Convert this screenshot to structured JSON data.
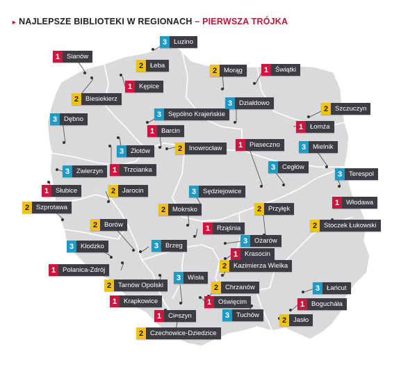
{
  "title": {
    "part1": "NAJLEPSZE BIBLIOTEKI W REGIONACH",
    "separator": " – ",
    "part2": "PIERWSZA TRÓJKA"
  },
  "colors": {
    "rank1": "#c8183f",
    "rank2": "#f2c01b",
    "rank3": "#1d9bc5",
    "label_bg": "#3c3d44",
    "land": "#d9dadc",
    "borders": "#ffffff"
  },
  "libraries": [
    {
      "rank": "3",
      "name": "Luzino"
    },
    {
      "rank": "1",
      "name": "Sianów"
    },
    {
      "rank": "2",
      "name": "Łeba"
    },
    {
      "rank": "1",
      "name": "Kępice"
    },
    {
      "rank": "2",
      "name": "Biesiekierz"
    },
    {
      "rank": "2",
      "name": "Morąg"
    },
    {
      "rank": "1",
      "name": "Świątki"
    },
    {
      "rank": "3",
      "name": "Sępólno Krajeńskie"
    },
    {
      "rank": "3",
      "name": "Działdowo"
    },
    {
      "rank": "2",
      "name": "Szczuczyn"
    },
    {
      "rank": "3",
      "name": "Dębno"
    },
    {
      "rank": "1",
      "name": "Barcin"
    },
    {
      "rank": "1",
      "name": "Łomża"
    },
    {
      "rank": "3",
      "name": "Złotów"
    },
    {
      "rank": "2",
      "name": "Inowrocław"
    },
    {
      "rank": "1",
      "name": "Piaseczno"
    },
    {
      "rank": "3",
      "name": "Mielnik"
    },
    {
      "rank": "1",
      "name": "Trzcianka"
    },
    {
      "rank": "3",
      "name": "Zwierzyn"
    },
    {
      "rank": "3",
      "name": "Cegłów"
    },
    {
      "rank": "3",
      "name": "Terespol"
    },
    {
      "rank": "1",
      "name": "Słubice"
    },
    {
      "rank": "2",
      "name": "Jarocin"
    },
    {
      "rank": "3",
      "name": "Sędziejowice"
    },
    {
      "rank": "2",
      "name": "Szprotawa"
    },
    {
      "rank": "2",
      "name": "Mokrsko"
    },
    {
      "rank": "2",
      "name": "Przyłęk"
    },
    {
      "rank": "1",
      "name": "Włodawa"
    },
    {
      "rank": "2",
      "name": "Borów"
    },
    {
      "rank": "1",
      "name": "Rząśnia"
    },
    {
      "rank": "2",
      "name": "Stoczek Łukowski"
    },
    {
      "rank": "3",
      "name": "Kłodzko"
    },
    {
      "rank": "3",
      "name": "Brzeg"
    },
    {
      "rank": "3",
      "name": "Ożarów"
    },
    {
      "rank": "1",
      "name": "Krasocin"
    },
    {
      "rank": "1",
      "name": "Polanica-Zdrój"
    },
    {
      "rank": "2",
      "name": "Kazimierza Wielka"
    },
    {
      "rank": "3",
      "name": "Wisła"
    },
    {
      "rank": "2",
      "name": "Tarnów Opolski"
    },
    {
      "rank": "2",
      "name": "Chrzanów"
    },
    {
      "rank": "3",
      "name": "Łańcut"
    },
    {
      "rank": "1",
      "name": "Krapkowice"
    },
    {
      "rank": "1",
      "name": "Oświęcim"
    },
    {
      "rank": "1",
      "name": "Bogucháła"
    },
    {
      "rank": "1",
      "name": "Cieszyn"
    },
    {
      "rank": "3",
      "name": "Tuchów"
    },
    {
      "rank": "2",
      "name": "Jasło"
    },
    {
      "rank": "2",
      "name": "Czechowice-Dziedzice"
    }
  ]
}
